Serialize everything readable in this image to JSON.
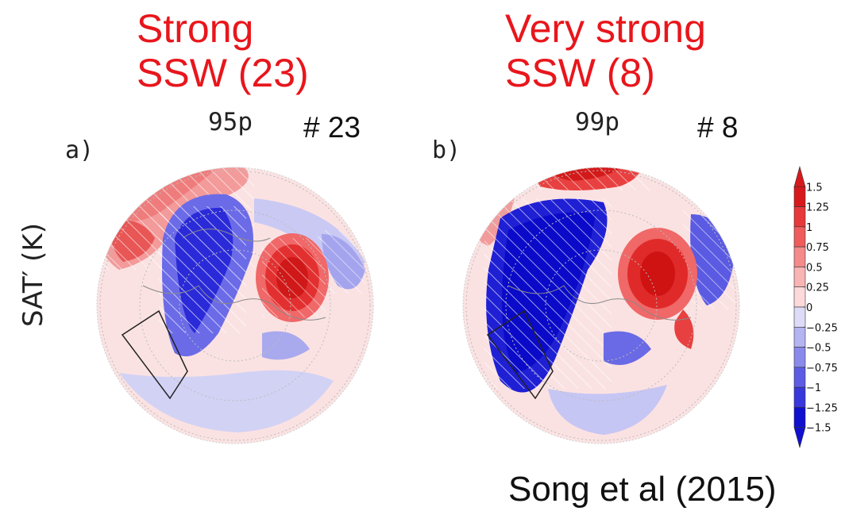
{
  "titles": {
    "left": [
      "Strong",
      "SSW (23)"
    ],
    "right": [
      "Very strong",
      "SSW (8)"
    ]
  },
  "panels": [
    {
      "label": "a)",
      "percentile": "95p",
      "count": "# 23"
    },
    {
      "label": "b)",
      "percentile": "99p",
      "count": "# 8"
    }
  ],
  "ylabel": "SAT′ (K)",
  "credit": "Song et al (2015)",
  "colorbar": {
    "labels": [
      "1.5",
      "1.25",
      "1",
      "0.75",
      "0.5",
      "0.25",
      "0",
      "−0.25",
      "−0.5",
      "−0.75",
      "−1",
      "−1.25",
      "−1.5"
    ],
    "colors": [
      "#d7191c",
      "#e8383a",
      "#f05c5c",
      "#f58a8a",
      "#f9b4b4",
      "#fcdada",
      "#ffffff",
      "#dcdcf8",
      "#b4b4f2",
      "#8a8aec",
      "#5c5ce4",
      "#3838dc",
      "#1010d0"
    ]
  }
}
